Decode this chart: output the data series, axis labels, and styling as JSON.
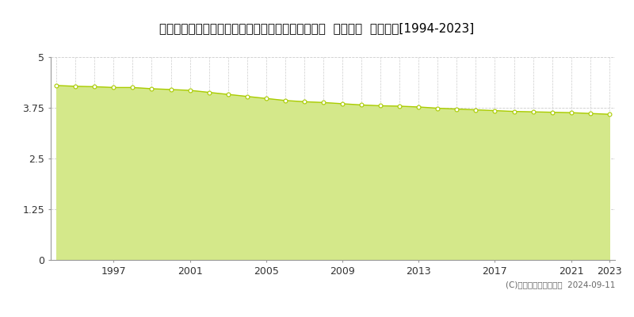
{
  "title": "栃木県芳賀郡芳賀町大字稲毛田字屋敷添１４３０番  地価公示  地価推移[1994-2023]",
  "years": [
    1994,
    1995,
    1996,
    1997,
    1998,
    1999,
    2000,
    2001,
    2002,
    2003,
    2004,
    2005,
    2006,
    2007,
    2008,
    2009,
    2010,
    2011,
    2012,
    2013,
    2014,
    2015,
    2016,
    2017,
    2018,
    2019,
    2020,
    2021,
    2022,
    2023
  ],
  "values": [
    4.3,
    4.28,
    4.27,
    4.25,
    4.25,
    4.22,
    4.2,
    4.18,
    4.13,
    4.08,
    4.03,
    3.98,
    3.93,
    3.9,
    3.88,
    3.85,
    3.82,
    3.8,
    3.79,
    3.77,
    3.74,
    3.72,
    3.7,
    3.68,
    3.66,
    3.65,
    3.64,
    3.63,
    3.61,
    3.59
  ],
  "line_color": "#aacc00",
  "fill_color": "#d4e88a",
  "fill_alpha": 1.0,
  "marker_color": "#ffffff",
  "marker_edge_color": "#aacc00",
  "ylim": [
    0,
    5
  ],
  "yticks": [
    0,
    1.25,
    2.5,
    3.75,
    5
  ],
  "xtick_years": [
    1997,
    2001,
    2005,
    2009,
    2013,
    2017,
    2021,
    2023
  ],
  "grid_color": "#cccccc",
  "bg_color": "#ffffff",
  "copyright_text": "(C)土地価格ドットコム  2024-09-11",
  "title_fontsize": 11,
  "axis_fontsize": 9,
  "legend_fontsize": 9
}
